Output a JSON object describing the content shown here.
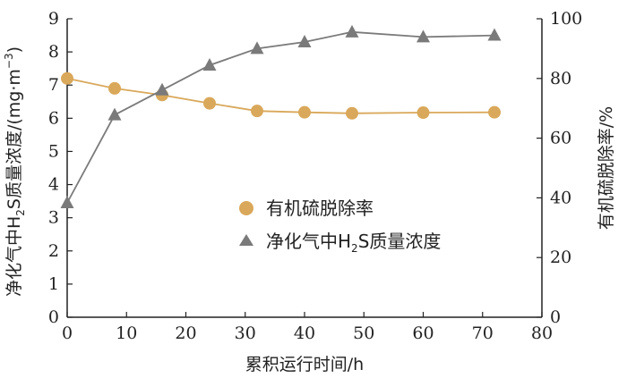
{
  "chart_data": {
    "type": "line",
    "x": [
      0,
      8,
      16,
      24,
      32,
      40,
      48,
      60,
      72
    ],
    "xlabel": "累积运行时间/h",
    "xlim": [
      0,
      80
    ],
    "xticks": [
      0,
      10,
      20,
      30,
      40,
      50,
      60,
      70,
      80
    ],
    "y_left": {
      "label_prefix": "净化气中H",
      "label_sub": "2",
      "label_suffix": "S质量浓度/(mg·m",
      "label_sup": "−3",
      "label_end": ")",
      "lim": [
        0,
        9
      ],
      "ticks": [
        0,
        1,
        2,
        3,
        4,
        5,
        6,
        7,
        8,
        9
      ]
    },
    "y_right": {
      "label": "有机硫脱除率/%",
      "lim": [
        0,
        100
      ],
      "ticks": [
        0,
        20,
        40,
        60,
        80,
        100
      ]
    },
    "series": [
      {
        "name": "有机硫脱除率",
        "axis": "right",
        "marker": "circle",
        "color": "#d9a85a",
        "values": [
          7.2,
          6.9,
          6.7,
          6.45,
          6.22,
          6.18,
          6.15,
          6.17,
          6.18
        ]
      },
      {
        "name_prefix": "净化气中H",
        "name_sub": "2",
        "name_suffix": "S质量浓度",
        "axis": "left",
        "marker": "triangle",
        "color": "#7a7a7a",
        "values": [
          3.45,
          6.1,
          6.85,
          7.6,
          8.1,
          8.3,
          8.6,
          8.45,
          8.5
        ]
      }
    ],
    "grid": false,
    "legend_position": "left-middle"
  }
}
